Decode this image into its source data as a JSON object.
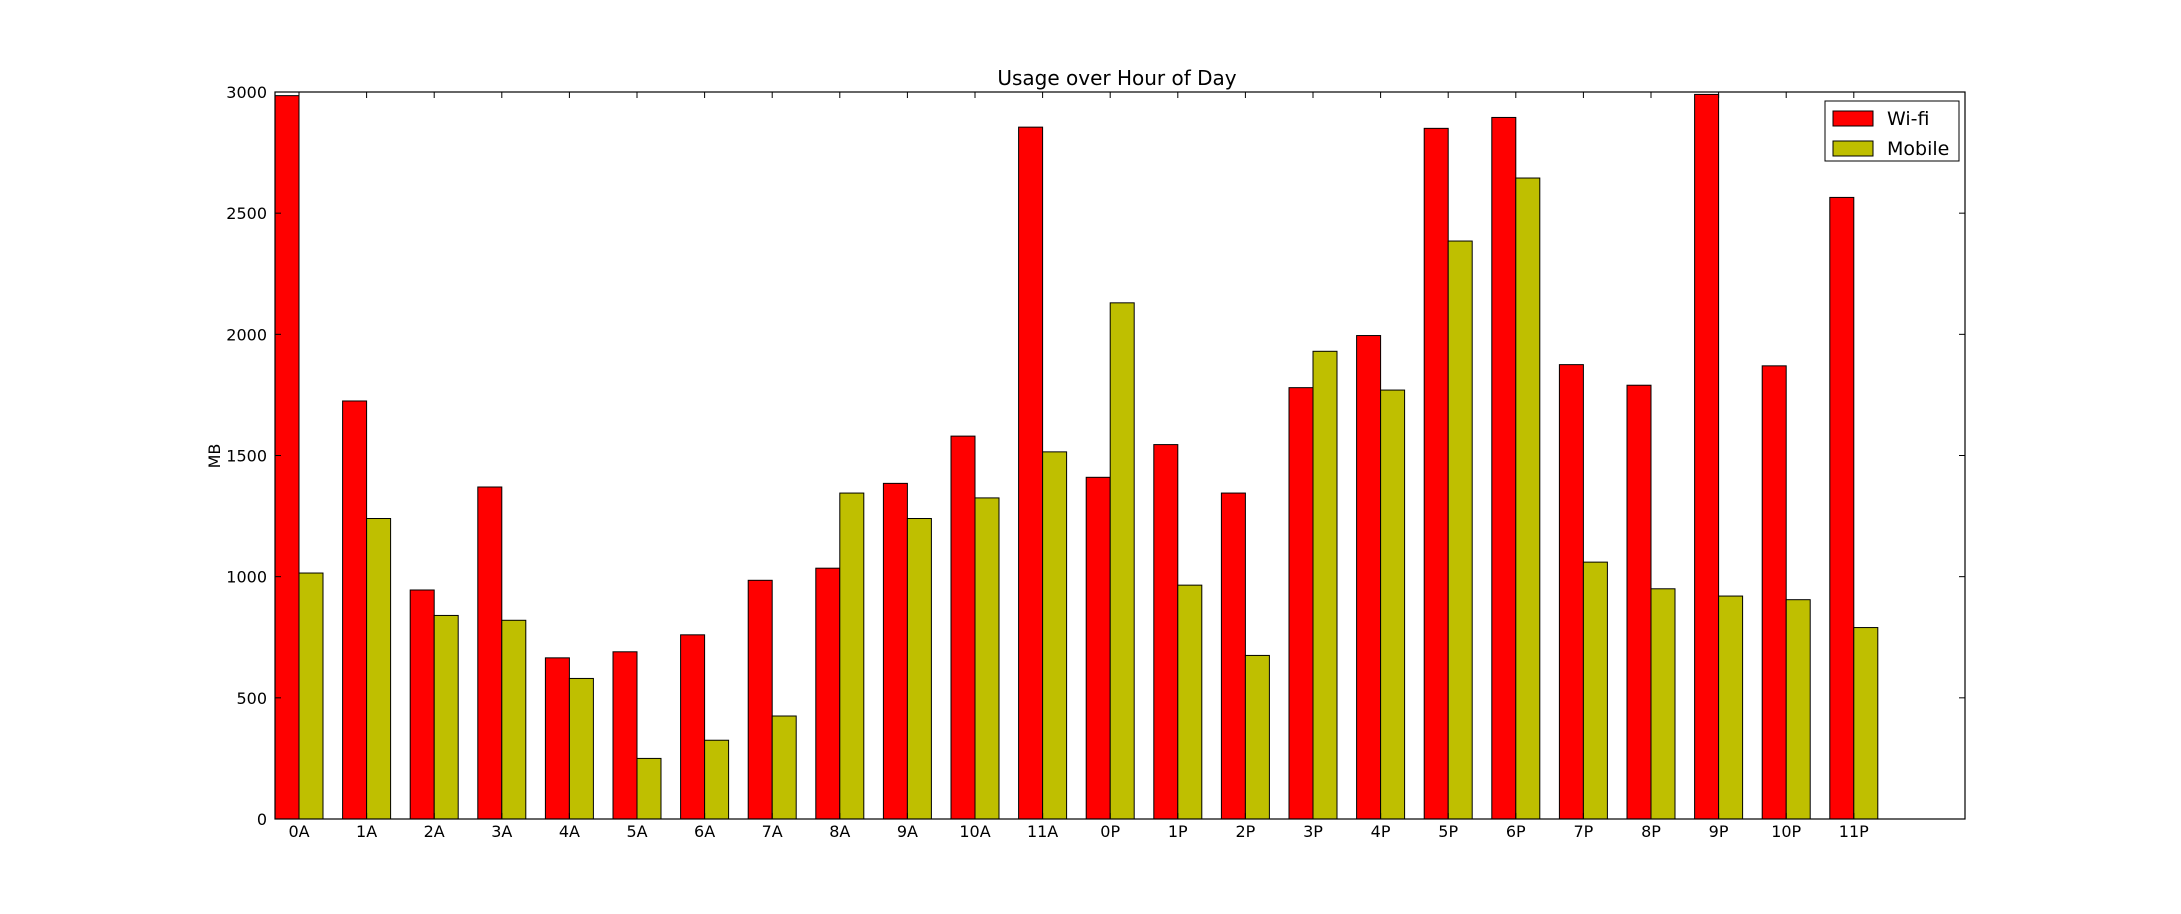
{
  "chart_data": {
    "type": "bar",
    "title": "Usage over Hour of Day",
    "xlabel": "",
    "ylabel": "MB",
    "ylim": [
      0,
      3000
    ],
    "yticks": [
      0,
      500,
      1000,
      1500,
      2000,
      2500,
      3000
    ],
    "grid": false,
    "legend_position": "top-right",
    "categories": [
      "0A",
      "1A",
      "2A",
      "3A",
      "4A",
      "5A",
      "6A",
      "7A",
      "8A",
      "9A",
      "10A",
      "11A",
      "0P",
      "1P",
      "2P",
      "3P",
      "4P",
      "5P",
      "6P",
      "7P",
      "8P",
      "9P",
      "10P",
      "11P"
    ],
    "series": [
      {
        "name": "Wi-fi",
        "color": "#ff0000",
        "values": [
          2985,
          1725,
          945,
          1370,
          665,
          690,
          760,
          985,
          1035,
          1385,
          1580,
          2855,
          1410,
          1545,
          1345,
          1780,
          1995,
          2850,
          2895,
          1875,
          1790,
          2990,
          1870,
          2565
        ]
      },
      {
        "name": "Mobile",
        "color": "#bfbf00",
        "values": [
          1015,
          1240,
          840,
          820,
          580,
          250,
          325,
          425,
          1345,
          1240,
          1325,
          1515,
          2130,
          965,
          675,
          1930,
          1770,
          2385,
          2645,
          1060,
          950,
          920,
          905,
          790
        ]
      }
    ]
  }
}
